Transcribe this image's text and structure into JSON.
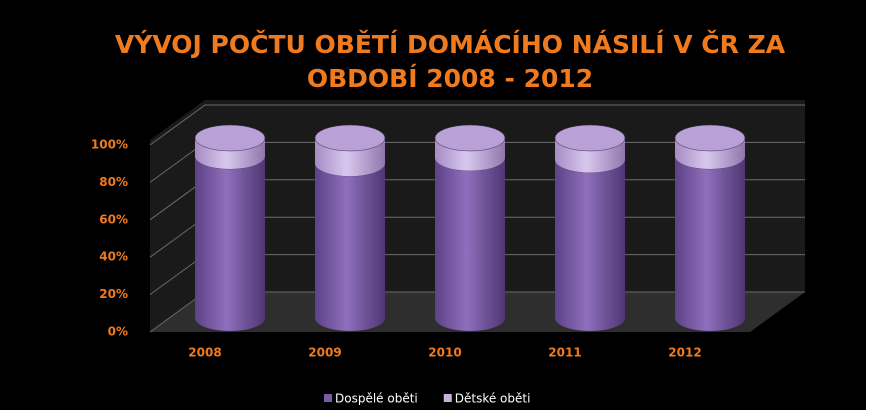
{
  "chart_data": {
    "type": "bar",
    "stacked": true,
    "three_d": true,
    "title": [
      "VÝVOJ POČTU OBĚTÍ DOMÁCÍHO NÁSILÍ V ČR ZA",
      "OBDOBÍ 2008 - 2012"
    ],
    "categories": [
      "2008",
      "2009",
      "2010",
      "2011",
      "2012"
    ],
    "series": [
      {
        "name": "Dospělé oběti",
        "color": "#7b5aa6",
        "values": [
          90,
          86,
          89,
          88,
          90
        ]
      },
      {
        "name": "Dětské oběti",
        "color": "#c7b0df",
        "values": [
          10,
          14,
          11,
          12,
          10
        ]
      }
    ],
    "ylim": [
      0,
      100
    ],
    "yticks": [
      {
        "value": 0,
        "label": "0%"
      },
      {
        "value": 20,
        "label": "20%"
      },
      {
        "value": 40,
        "label": "40%"
      },
      {
        "value": 60,
        "label": "60%"
      },
      {
        "value": 80,
        "label": "80%"
      },
      {
        "value": 100,
        "label": "100%"
      }
    ],
    "grid": true,
    "legend": "bottom"
  }
}
